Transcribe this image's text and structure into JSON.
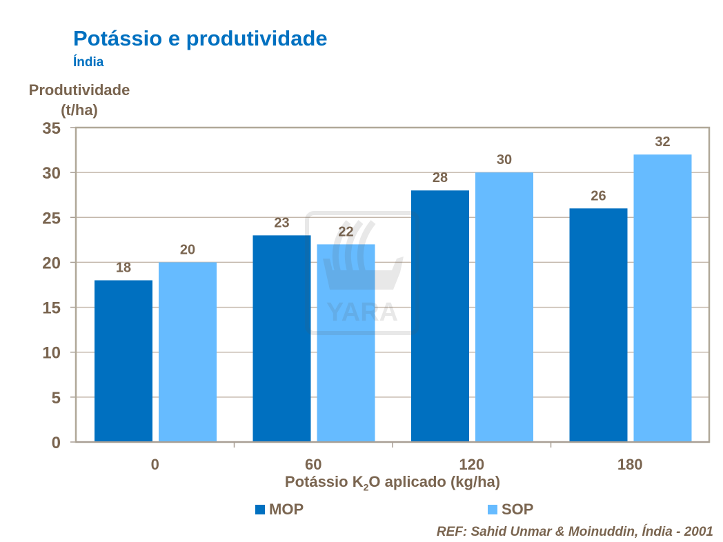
{
  "title": "Potássio e produtividade",
  "subtitle": "Índia",
  "reference": "REF: Sahid Unmar & Moinuddin, Índia - 2001",
  "watermark": "YARA",
  "chart_data": {
    "type": "bar",
    "title": "Potássio e produtividade",
    "ylabel_line1": "Produtividade",
    "ylabel_line2": "(t/ha)",
    "xlabel_pre": "Potássio K",
    "xlabel_sub": "2",
    "xlabel_post": "O aplicado (kg/ha)",
    "categories": [
      "0",
      "60",
      "120",
      "180"
    ],
    "ylim": [
      0,
      35
    ],
    "yticks": [
      0,
      5,
      10,
      15,
      20,
      25,
      30,
      35
    ],
    "grid": true,
    "legend_position": "bottom",
    "series": [
      {
        "name": "MOP",
        "color": "#0070c0",
        "values": [
          18,
          23,
          28,
          26
        ]
      },
      {
        "name": "SOP",
        "color": "#66bbff",
        "values": [
          20,
          22,
          30,
          32
        ]
      }
    ]
  }
}
